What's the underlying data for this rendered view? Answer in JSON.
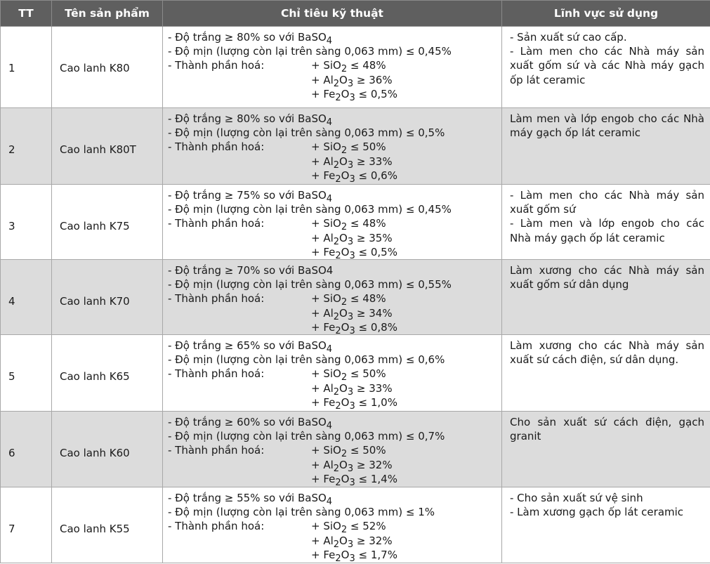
{
  "headers": {
    "tt": "TT",
    "name": "Tên sản phẩm",
    "spec": "Chỉ tiêu kỹ thuật",
    "use": "Lĩnh vực sử dụng"
  },
  "rows": [
    {
      "tt": "1",
      "name": "Cao lanh K80",
      "whiteness": "- Độ trắng ≥ 80% so với BaSO",
      "whiteness_sub": "4",
      "fineness": "- Độ mịn (lượng còn lại trên sàng 0,063 mm) ≤ 0,45%",
      "chem_label": "- Thành phần hoá:",
      "sio2": "≤ 48%",
      "al2o3": "≥ 36%",
      "fe2o3": "≤ 0,5%",
      "use": [
        "- Sản xuất sứ cao cấp.",
        "- Làm men cho các Nhà máy sản xuất gốm sứ và các Nhà máy gạch ốp lát ceramic"
      ]
    },
    {
      "tt": "2",
      "name": "Cao lanh K80T",
      "whiteness": "- Độ trắng ≥ 80% so với BaSO",
      "whiteness_sub": "4",
      "fineness": "- Độ mịn (lượng còn lại trên sàng  0,063 mm) ≤ 0,5%",
      "chem_label": "- Thành phần hoá:",
      "sio2": " ≤ 50%",
      "al2o3": "≥ 33%",
      "fe2o3": "≤ 0,6%",
      "use": [
        "Làm men và lớp engob cho các Nhà máy gạch ốp lát ceramic"
      ]
    },
    {
      "tt": "3",
      "name": "Cao lanh K75",
      "whiteness": "- Độ trắng ≥ 75% so với BaSO",
      "whiteness_sub": "4",
      "fineness": "- Độ mịn (lượng còn lại trên sàng 0,063 mm) ≤ 0,45%",
      "chem_label": "- Thành phần hoá:",
      "sio2": "≤ 48%",
      "al2o3": "≥ 35%",
      "fe2o3": "≤ 0,5%",
      "use": [
        "- Làm men cho các Nhà máy sản xuất gốm sứ",
        "- Làm men và lớp engob cho các Nhà máy gạch ốp lát ceramic"
      ]
    },
    {
      "tt": "4",
      "name": "Cao lanh K70",
      "whiteness": "- Độ trắng ≥ 70% so với BaSO4",
      "whiteness_sub": "",
      "fineness": "- Độ mịn (lượng còn lại trên sàng   0,063 mm) ≤ 0,55%",
      "chem_label": "- Thành phần hoá:",
      "sio2": "≤ 48%",
      "al2o3": "≥ 34%",
      "fe2o3": "≤ 0,8%",
      "use": [
        "Làm xương cho các Nhà máy sản xuất gốm sứ dân dụng"
      ]
    },
    {
      "tt": "5",
      "name": "Cao lanh K65",
      "whiteness": "- Độ trắng ≥ 65% so với BaSO",
      "whiteness_sub": "4",
      "fineness": "- Độ mịn (lượng còn lại trên sàng  0,063 mm) ≤  0,6%",
      "chem_label": "- Thành phần hoá:",
      "sio2": " ≤  50%",
      "al2o3": "≥ 33%",
      "fe2o3": "≤  1,0%",
      "use": [
        "Làm xương cho các Nhà máy sản xuất sứ cách điện, sứ dân dụng."
      ]
    },
    {
      "tt": "6",
      "name": "Cao lanh K60",
      "whiteness": "- Độ trắng ≥ 60% so với BaSO",
      "whiteness_sub": "4",
      "fineness": "- Độ mịn (lượng còn lại trên sàng 0,063 mm) ≤ 0,7%",
      "chem_label": "- Thành phần hoá:",
      "sio2": " ≤ 50%",
      "al2o3": "≥ 32%",
      "fe2o3": "≤ 1,4%",
      "use": [
        "Cho sản xuất sứ cách điện, gạch granit"
      ]
    },
    {
      "tt": "7",
      "name": "Cao lanh K55",
      "whiteness": "- Độ trắng ≥ 55% so với BaSO",
      "whiteness_sub": "4",
      "fineness": "- Độ mịn (lượng còn lại trên sàng 0,063 mm) ≤  1%",
      "chem_label": "- Thành phần hoá:",
      "sio2": " ≤ 52%",
      "al2o3": "≥ 32%",
      "fe2o3": "≤  1,7%",
      "use": [
        "- Cho sản xuất sứ vệ sinh",
        "- Làm xương gạch ốp lát ceramic"
      ]
    }
  ]
}
